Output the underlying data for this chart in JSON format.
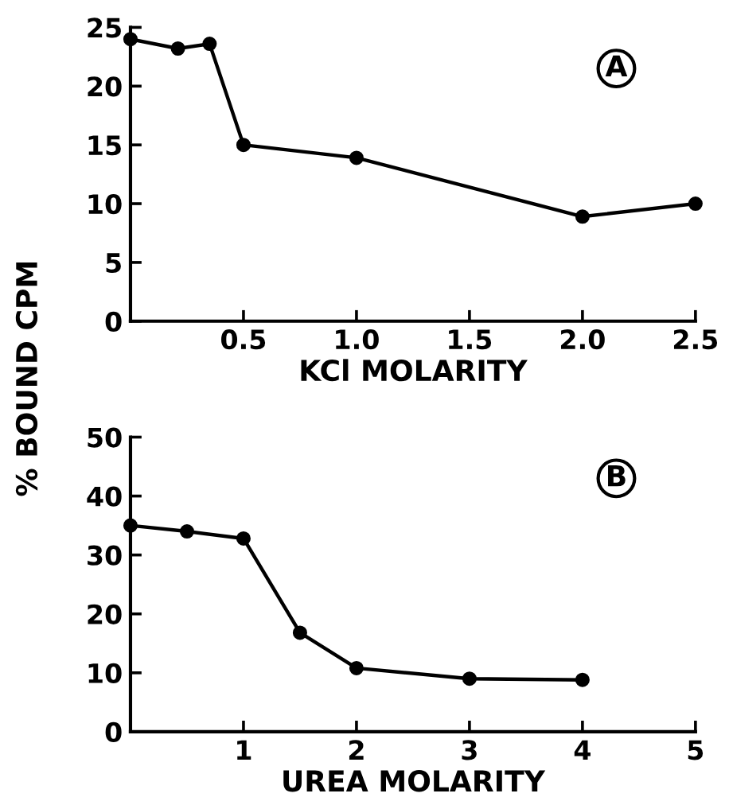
{
  "chart_data": [
    {
      "type": "line",
      "xlabel": "KCl MOLARITY",
      "ylabel": "% BOUND CPM",
      "annotations": [
        "A"
      ],
      "marker": "circle",
      "line_style": "solid",
      "grid": false,
      "x": [
        0,
        0.21,
        0.35,
        0.5,
        1.0,
        2.0,
        2.5
      ],
      "series": [
        {
          "color": "#000000",
          "values": [
            24,
            23.2,
            23.6,
            15,
            13.9,
            8.9,
            10
          ]
        }
      ],
      "xlim": [
        0,
        2.5
      ],
      "ylim": [
        0,
        25
      ],
      "xticks": [
        {
          "value": 0,
          "label": null
        },
        0.5,
        {
          "value": 1,
          "label": "1.0"
        },
        1.5,
        {
          "value": 2,
          "label": "2.0"
        },
        2.5
      ],
      "yticks": [
        0,
        5,
        10,
        15,
        20,
        25
      ]
    },
    {
      "type": "line",
      "xlabel": "UREA MOLARITY",
      "annotations": [
        "B"
      ],
      "marker": "circle",
      "line_style": "solid",
      "grid": false,
      "x": [
        0,
        0.5,
        1,
        1.5,
        2,
        3,
        4
      ],
      "series": [
        {
          "color": "#000000",
          "values": [
            35,
            34,
            32.8,
            16.8,
            10.8,
            9,
            8.8
          ]
        }
      ],
      "xlim": [
        0,
        5
      ],
      "ylim": [
        0,
        50
      ],
      "xticks": [
        {
          "value": 0,
          "label": null
        },
        1,
        2,
        3,
        4,
        5
      ],
      "yticks": [
        0,
        10,
        20,
        30,
        40,
        50
      ]
    }
  ]
}
